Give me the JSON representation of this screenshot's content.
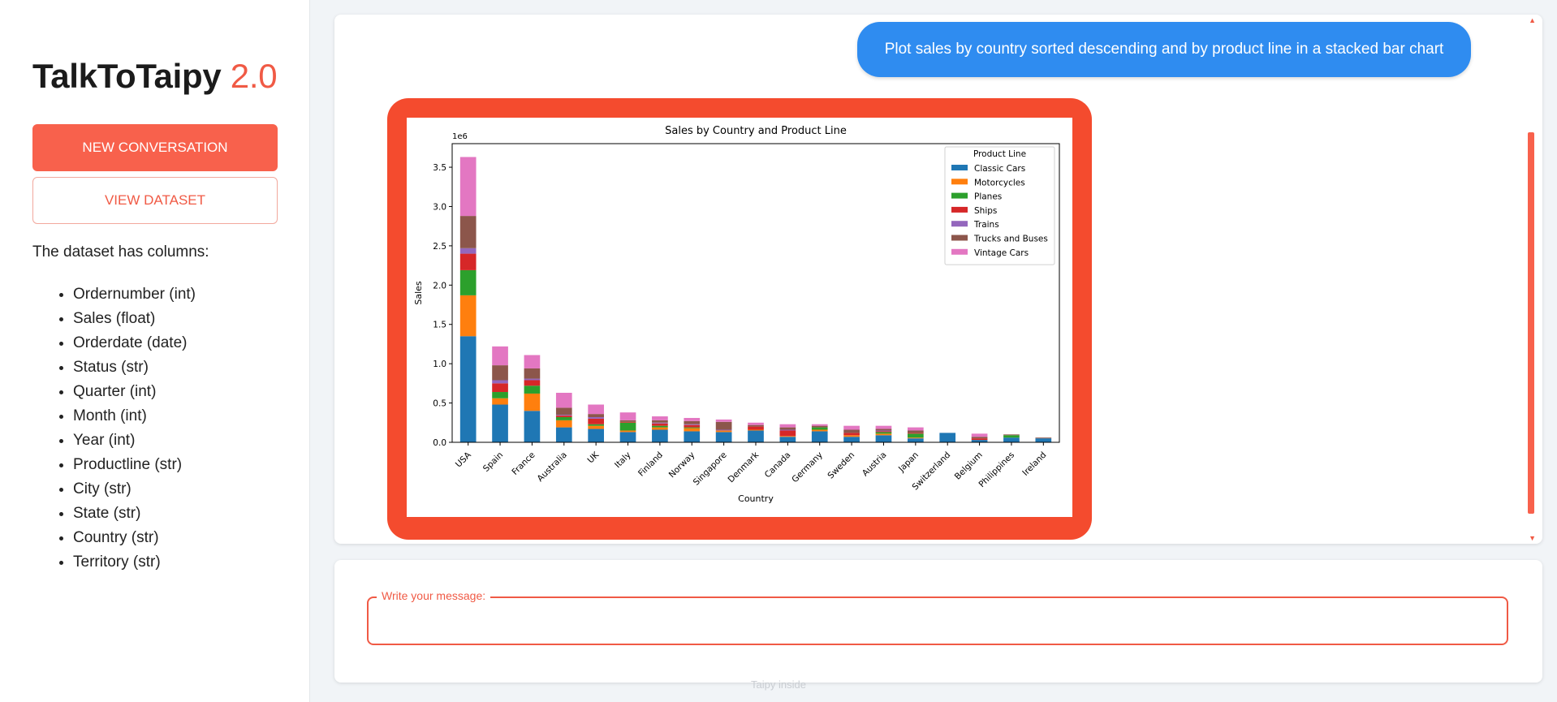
{
  "sidebar": {
    "title_main": "TalkToTaipy",
    "title_version": "2.0",
    "new_conversation": "NEW CONVERSATION",
    "view_dataset": "VIEW DATASET",
    "columns_intro": "The dataset has columns:",
    "columns": [
      "Ordernumber (int)",
      "Sales (float)",
      "Orderdate (date)",
      "Status (str)",
      "Quarter (int)",
      "Month (int)",
      "Year (int)",
      "Productline (str)",
      "City (str)",
      "State (str)",
      "Country (str)",
      "Territory (str)"
    ]
  },
  "chat": {
    "user_message": "Plot sales by country sorted descending and by product line in a stacked bar chart"
  },
  "input": {
    "label": "Write your message:",
    "value": ""
  },
  "footer": "Taipy inside",
  "colors": {
    "accent": "#f8614c",
    "user_bubble": "#2f8cf0",
    "chart_frame": "#f44b2e"
  },
  "chart_data": {
    "type": "bar",
    "stacked": true,
    "title": "Sales by Country and Product Line",
    "xlabel": "Country",
    "ylabel": "Sales",
    "y_multiplier_label": "1e6",
    "ylim": [
      0,
      3.8
    ],
    "yticks": [
      "0.0",
      "0.5",
      "1.0",
      "1.5",
      "2.0",
      "2.5",
      "3.0",
      "3.5"
    ],
    "legend_title": "Product Line",
    "legend_position": "top-right",
    "categories": [
      "USA",
      "Spain",
      "France",
      "Australia",
      "UK",
      "Italy",
      "Finland",
      "Norway",
      "Singapore",
      "Denmark",
      "Canada",
      "Germany",
      "Sweden",
      "Austria",
      "Japan",
      "Switzerland",
      "Belgium",
      "Philippines",
      "Ireland"
    ],
    "series": [
      {
        "name": "Classic Cars",
        "color": "#1f77b4",
        "values": [
          1.35,
          0.48,
          0.4,
          0.19,
          0.17,
          0.13,
          0.16,
          0.14,
          0.13,
          0.15,
          0.07,
          0.14,
          0.07,
          0.09,
          0.05,
          0.12,
          0.03,
          0.06,
          0.05
        ]
      },
      {
        "name": "Motorcycles",
        "color": "#ff7f0e",
        "values": [
          0.52,
          0.08,
          0.22,
          0.09,
          0.04,
          0.02,
          0.03,
          0.04,
          0.02,
          0.01,
          0.01,
          0.02,
          0.02,
          0.02,
          0.01,
          0.0,
          0.0,
          0.0,
          0.0
        ]
      },
      {
        "name": "Planes",
        "color": "#2ca02c",
        "values": [
          0.32,
          0.08,
          0.1,
          0.04,
          0.02,
          0.1,
          0.02,
          0.01,
          0.0,
          0.0,
          0.0,
          0.03,
          0.0,
          0.02,
          0.05,
          0.0,
          0.0,
          0.03,
          0.0
        ]
      },
      {
        "name": "Ships",
        "color": "#d62728",
        "values": [
          0.21,
          0.11,
          0.07,
          0.02,
          0.07,
          0.01,
          0.03,
          0.03,
          0.0,
          0.04,
          0.07,
          0.0,
          0.03,
          0.01,
          0.01,
          0.0,
          0.02,
          0.0,
          0.0
        ]
      },
      {
        "name": "Trains",
        "color": "#9467bd",
        "values": [
          0.07,
          0.04,
          0.02,
          0.01,
          0.02,
          0.0,
          0.01,
          0.01,
          0.01,
          0.0,
          0.01,
          0.0,
          0.0,
          0.01,
          0.0,
          0.0,
          0.0,
          0.0,
          0.0
        ]
      },
      {
        "name": "Trucks and Buses",
        "color": "#8c564b",
        "values": [
          0.41,
          0.19,
          0.13,
          0.09,
          0.04,
          0.02,
          0.03,
          0.04,
          0.1,
          0.02,
          0.03,
          0.02,
          0.04,
          0.02,
          0.03,
          0.0,
          0.02,
          0.01,
          0.01
        ]
      },
      {
        "name": "Vintage Cars",
        "color": "#e377c2",
        "values": [
          0.75,
          0.24,
          0.17,
          0.19,
          0.12,
          0.1,
          0.05,
          0.04,
          0.03,
          0.03,
          0.04,
          0.02,
          0.05,
          0.04,
          0.04,
          0.0,
          0.04,
          0.0,
          0.0
        ]
      }
    ]
  }
}
